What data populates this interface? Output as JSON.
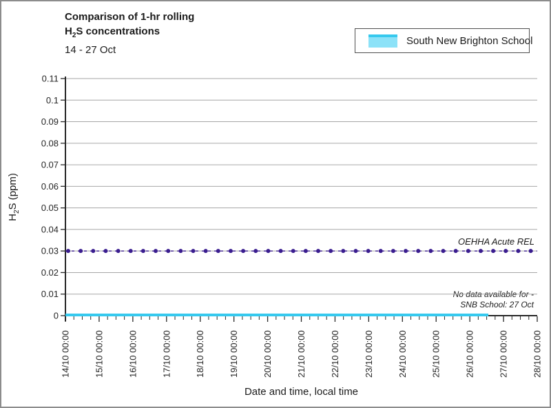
{
  "header": {
    "title_line1": "Comparison of 1-hr rolling",
    "title_line2": {
      "pre": "H",
      "sub": "2",
      "rest": "S concentrations"
    },
    "date_range": "14 - 27 Oct"
  },
  "legend": {
    "items": [
      {
        "label": "South New Brighton School",
        "fill": "#8ce2f8",
        "line": "#36c9ee"
      }
    ]
  },
  "axes": {
    "y_title": {
      "pre": "H",
      "sub": "2",
      "rest": "S (ppm)"
    },
    "x_title": "Date and time, local time"
  },
  "annotations": {
    "rel_label": "OEHHA Acute REL",
    "no_data_line1": "No data available for -",
    "no_data_line2": "SNB School: 27 Oct"
  },
  "chart_data": {
    "type": "line",
    "title": "Comparison of 1-hr rolling H2S concentrations",
    "subtitle": "14 - 27 Oct",
    "xlabel": "Date and time, local time",
    "ylabel": "H2S (ppm)",
    "ylim": [
      0,
      0.11
    ],
    "grid": true,
    "legend_position": "top-right",
    "yticks": [
      "0.11",
      "0.1",
      "0.09",
      "0.08",
      "0.07",
      "0.06",
      "0.05",
      "0.04",
      "0.03",
      "0.02",
      "0.01",
      "0"
    ],
    "ytick_values": [
      0.11,
      0.1,
      0.09,
      0.08,
      0.07,
      0.06,
      0.05,
      0.04,
      0.03,
      0.02,
      0.01,
      0
    ],
    "xticks": [
      "14/10 00:00",
      "15/10 00:00",
      "16/10 00:00",
      "17/10 00:00",
      "18/10 00:00",
      "19/10 00:00",
      "20/10 00:00",
      "21/10 00:00",
      "22/10 00:00",
      "23/10 00:00",
      "24/10 00:00",
      "25/10 00:00",
      "26/10 00:00",
      "27/10 00:00",
      "28/10 00:00"
    ],
    "x_minor_ticks_per_day": 4,
    "series": [
      {
        "name": "South New Brighton School",
        "type": "area",
        "color": "#36c9ee",
        "fill": "#8ce2f8",
        "constant_value": 0,
        "x_start": "14/10 00:00",
        "x_end": "26/10 ~13:00",
        "x_end_day_offset": 12.55,
        "note": "No data available for SNB School: 27 Oct"
      },
      {
        "name": "OEHHA Acute REL",
        "type": "reference_line",
        "style": "dashed_with_round_markers",
        "color": "#3a1d8f",
        "constant_value": 0.03
      }
    ]
  }
}
